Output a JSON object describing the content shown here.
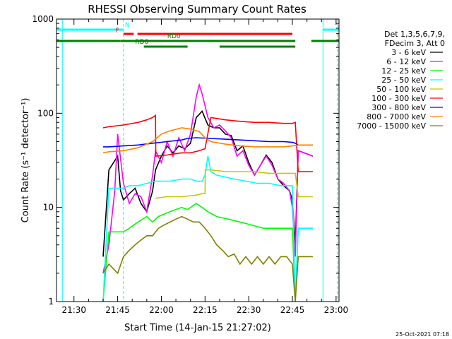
{
  "chart_data": {
    "type": "line",
    "title": "RHESSI Observing Summary Count Rates",
    "xlabel": "Start Time (14-Jan-15 21:27:02)",
    "ylabel": "Count Rate (s⁻¹ detector⁻¹)",
    "yscale": "log",
    "xlim": [
      -3.0,
      94.0
    ],
    "ylim": [
      1,
      1000
    ],
    "x_unit": "minutes from 21:27:02",
    "xtick_labels": [
      "21:30",
      "21:45",
      "22:00",
      "22:15",
      "22:30",
      "22:45",
      "23:00"
    ],
    "xtick_values": [
      3,
      18,
      33,
      48,
      63,
      78,
      93
    ],
    "ytick_labels": [
      "1",
      "10",
      "100",
      "1000"
    ],
    "ytick_values": [
      1,
      10,
      100,
      1000
    ],
    "legend": {
      "position": "top-right",
      "header": [
        "Det 1,3,5,6,7,9,",
        "FDecim 3, Att 0"
      ]
    },
    "footer_date": "25-Oct-2021 07:18",
    "flags": [
      {
        "label": "N",
        "color": "#00ffff",
        "segments": [
          [
            -3,
            20
          ],
          [
            88.5,
            97
          ]
        ]
      },
      {
        "label": "F",
        "color": "#ff0000",
        "segments": [
          [
            20,
            23.5
          ],
          [
            24.8,
            78
          ]
        ]
      },
      {
        "label": "RD0",
        "color": "#008000",
        "segments": [
          [
            -3,
            19
          ],
          [
            19,
            79
          ],
          [
            84.5,
            97
          ]
        ]
      },
      {
        "label": "RD6",
        "color": "#008000",
        "segments": [
          [
            27,
            42
          ],
          [
            53,
            79
          ]
        ]
      }
    ],
    "series": [
      {
        "name": "3 - 6 keV",
        "color": "#000000",
        "x": [
          13,
          15,
          18,
          19,
          20,
          22,
          24,
          26,
          28,
          30,
          31,
          33,
          35,
          37,
          39,
          41,
          43,
          45,
          47,
          49,
          51,
          53,
          55,
          57,
          59,
          61,
          63,
          65,
          67,
          69,
          71,
          73,
          75,
          77,
          78,
          79,
          80,
          82,
          84,
          85
        ],
        "y": [
          3,
          25,
          35,
          15,
          12,
          14,
          16,
          11,
          9,
          15,
          25,
          35,
          45,
          38,
          45,
          42,
          48,
          90,
          105,
          75,
          70,
          70,
          60,
          58,
          40,
          45,
          30,
          22,
          28,
          36,
          30,
          20,
          17,
          15,
          12,
          4,
          40,
          38,
          36,
          35
        ]
      },
      {
        "name": "6 - 12 keV",
        "color": "#ff00ff",
        "x": [
          13,
          15,
          17,
          18,
          20,
          22,
          24,
          26,
          28,
          30,
          31,
          33,
          35,
          37,
          39,
          41,
          43,
          45,
          46,
          47,
          49,
          51,
          53,
          55,
          57,
          59,
          61,
          63,
          65,
          67,
          69,
          71,
          73,
          75,
          77,
          78,
          79,
          80,
          82,
          84,
          85
        ],
        "y": [
          2,
          4,
          15,
          60,
          18,
          11,
          14,
          13,
          9,
          22,
          40,
          30,
          50,
          35,
          55,
          40,
          60,
          150,
          200,
          160,
          90,
          70,
          75,
          65,
          55,
          35,
          40,
          28,
          22,
          28,
          35,
          28,
          20,
          18,
          15,
          10,
          3,
          40,
          38,
          36,
          35
        ]
      },
      {
        "name": "12 - 25 keV",
        "color": "#00ff00",
        "x": [
          13,
          15,
          20,
          22,
          25,
          28,
          30,
          32,
          36,
          38,
          40,
          42,
          45,
          47,
          49,
          52,
          56,
          60,
          64,
          68,
          72,
          76,
          78,
          79,
          80,
          83,
          85
        ],
        "y": [
          1,
          5.5,
          5.5,
          6,
          7,
          8,
          7,
          8,
          9,
          9.5,
          10,
          9.5,
          11,
          10,
          9,
          8,
          7.5,
          7,
          6.5,
          6,
          6,
          6,
          6,
          1,
          6,
          6,
          6
        ]
      },
      {
        "name": "25 - 50 keV",
        "color": "#00ffff",
        "x": [
          13,
          15,
          20,
          22,
          25,
          28,
          31,
          33,
          36,
          40,
          43,
          45,
          47,
          48,
          49,
          50,
          52,
          55,
          58,
          62,
          66,
          70,
          74,
          78,
          79,
          80,
          82,
          85
        ],
        "y": [
          1,
          16,
          16,
          17,
          17,
          18,
          19,
          19,
          19,
          20,
          20,
          19,
          19,
          22,
          35,
          24,
          22,
          21,
          20,
          19,
          18,
          18,
          17,
          17,
          1,
          6,
          6,
          6
        ]
      },
      {
        "name": "50 - 100 keV",
        "color": "#c8c800",
        "x": [
          31,
          35,
          40,
          45,
          47,
          48,
          48.1,
          50,
          55,
          60,
          65,
          70,
          75,
          78,
          79,
          80,
          82,
          85
        ],
        "y": [
          12.5,
          13,
          13,
          13.5,
          14,
          14,
          25,
          25,
          24,
          24,
          24,
          23,
          23,
          23,
          23,
          13,
          13,
          13
        ]
      },
      {
        "name": "100 - 300 keV",
        "color": "#ff0000",
        "x": [
          13,
          15,
          20,
          25,
          28,
          30,
          31,
          31.1,
          35,
          40,
          43,
          46,
          48,
          50,
          55,
          60,
          65,
          70,
          75,
          78,
          79,
          80,
          85
        ],
        "y": [
          70,
          72,
          75,
          80,
          85,
          90,
          95,
          35,
          36,
          38,
          38,
          40,
          42,
          90,
          85,
          82,
          80,
          80,
          78,
          78,
          80,
          24,
          24
        ]
      },
      {
        "name": "300 - 800 keV",
        "color": "#0000ff",
        "x": [
          13,
          15,
          20,
          25,
          30,
          35,
          40,
          42,
          45,
          50,
          55,
          60,
          65,
          70,
          75,
          78,
          79,
          80,
          85
        ],
        "y": [
          44,
          44,
          45,
          46,
          48,
          50,
          52,
          54,
          55,
          54,
          53,
          52,
          51,
          50,
          50,
          49,
          48,
          46,
          46
        ]
      },
      {
        "name": "800 - 7000 keV",
        "color": "#ff8000",
        "x": [
          13,
          15,
          20,
          25,
          30,
          33,
          36,
          40,
          43,
          46,
          48,
          50,
          55,
          60,
          65,
          70,
          75,
          78,
          80,
          85
        ],
        "y": [
          38,
          39,
          40,
          43,
          50,
          60,
          65,
          70,
          68,
          64,
          55,
          50,
          47,
          45,
          44,
          44,
          44,
          45,
          46,
          46
        ]
      },
      {
        "name": "7000 - 15000 keV",
        "color": "#808000",
        "x": [
          13,
          15,
          18,
          20,
          22,
          24,
          26,
          28,
          30,
          32,
          34,
          36,
          38,
          40,
          42,
          44,
          46,
          48,
          50,
          52,
          54,
          56,
          58,
          60,
          62,
          64,
          66,
          68,
          70,
          72,
          74,
          76,
          78,
          79,
          80,
          83,
          85
        ],
        "y": [
          2,
          2.5,
          2,
          3,
          3.5,
          4,
          4.5,
          5,
          5,
          6,
          6.5,
          7,
          7.5,
          8,
          7.5,
          7,
          7,
          6,
          5,
          4,
          3.5,
          3,
          3.2,
          2.5,
          3,
          2.5,
          3,
          2.5,
          3,
          2.5,
          3,
          3,
          2.5,
          1,
          3,
          3,
          3
        ]
      }
    ]
  }
}
